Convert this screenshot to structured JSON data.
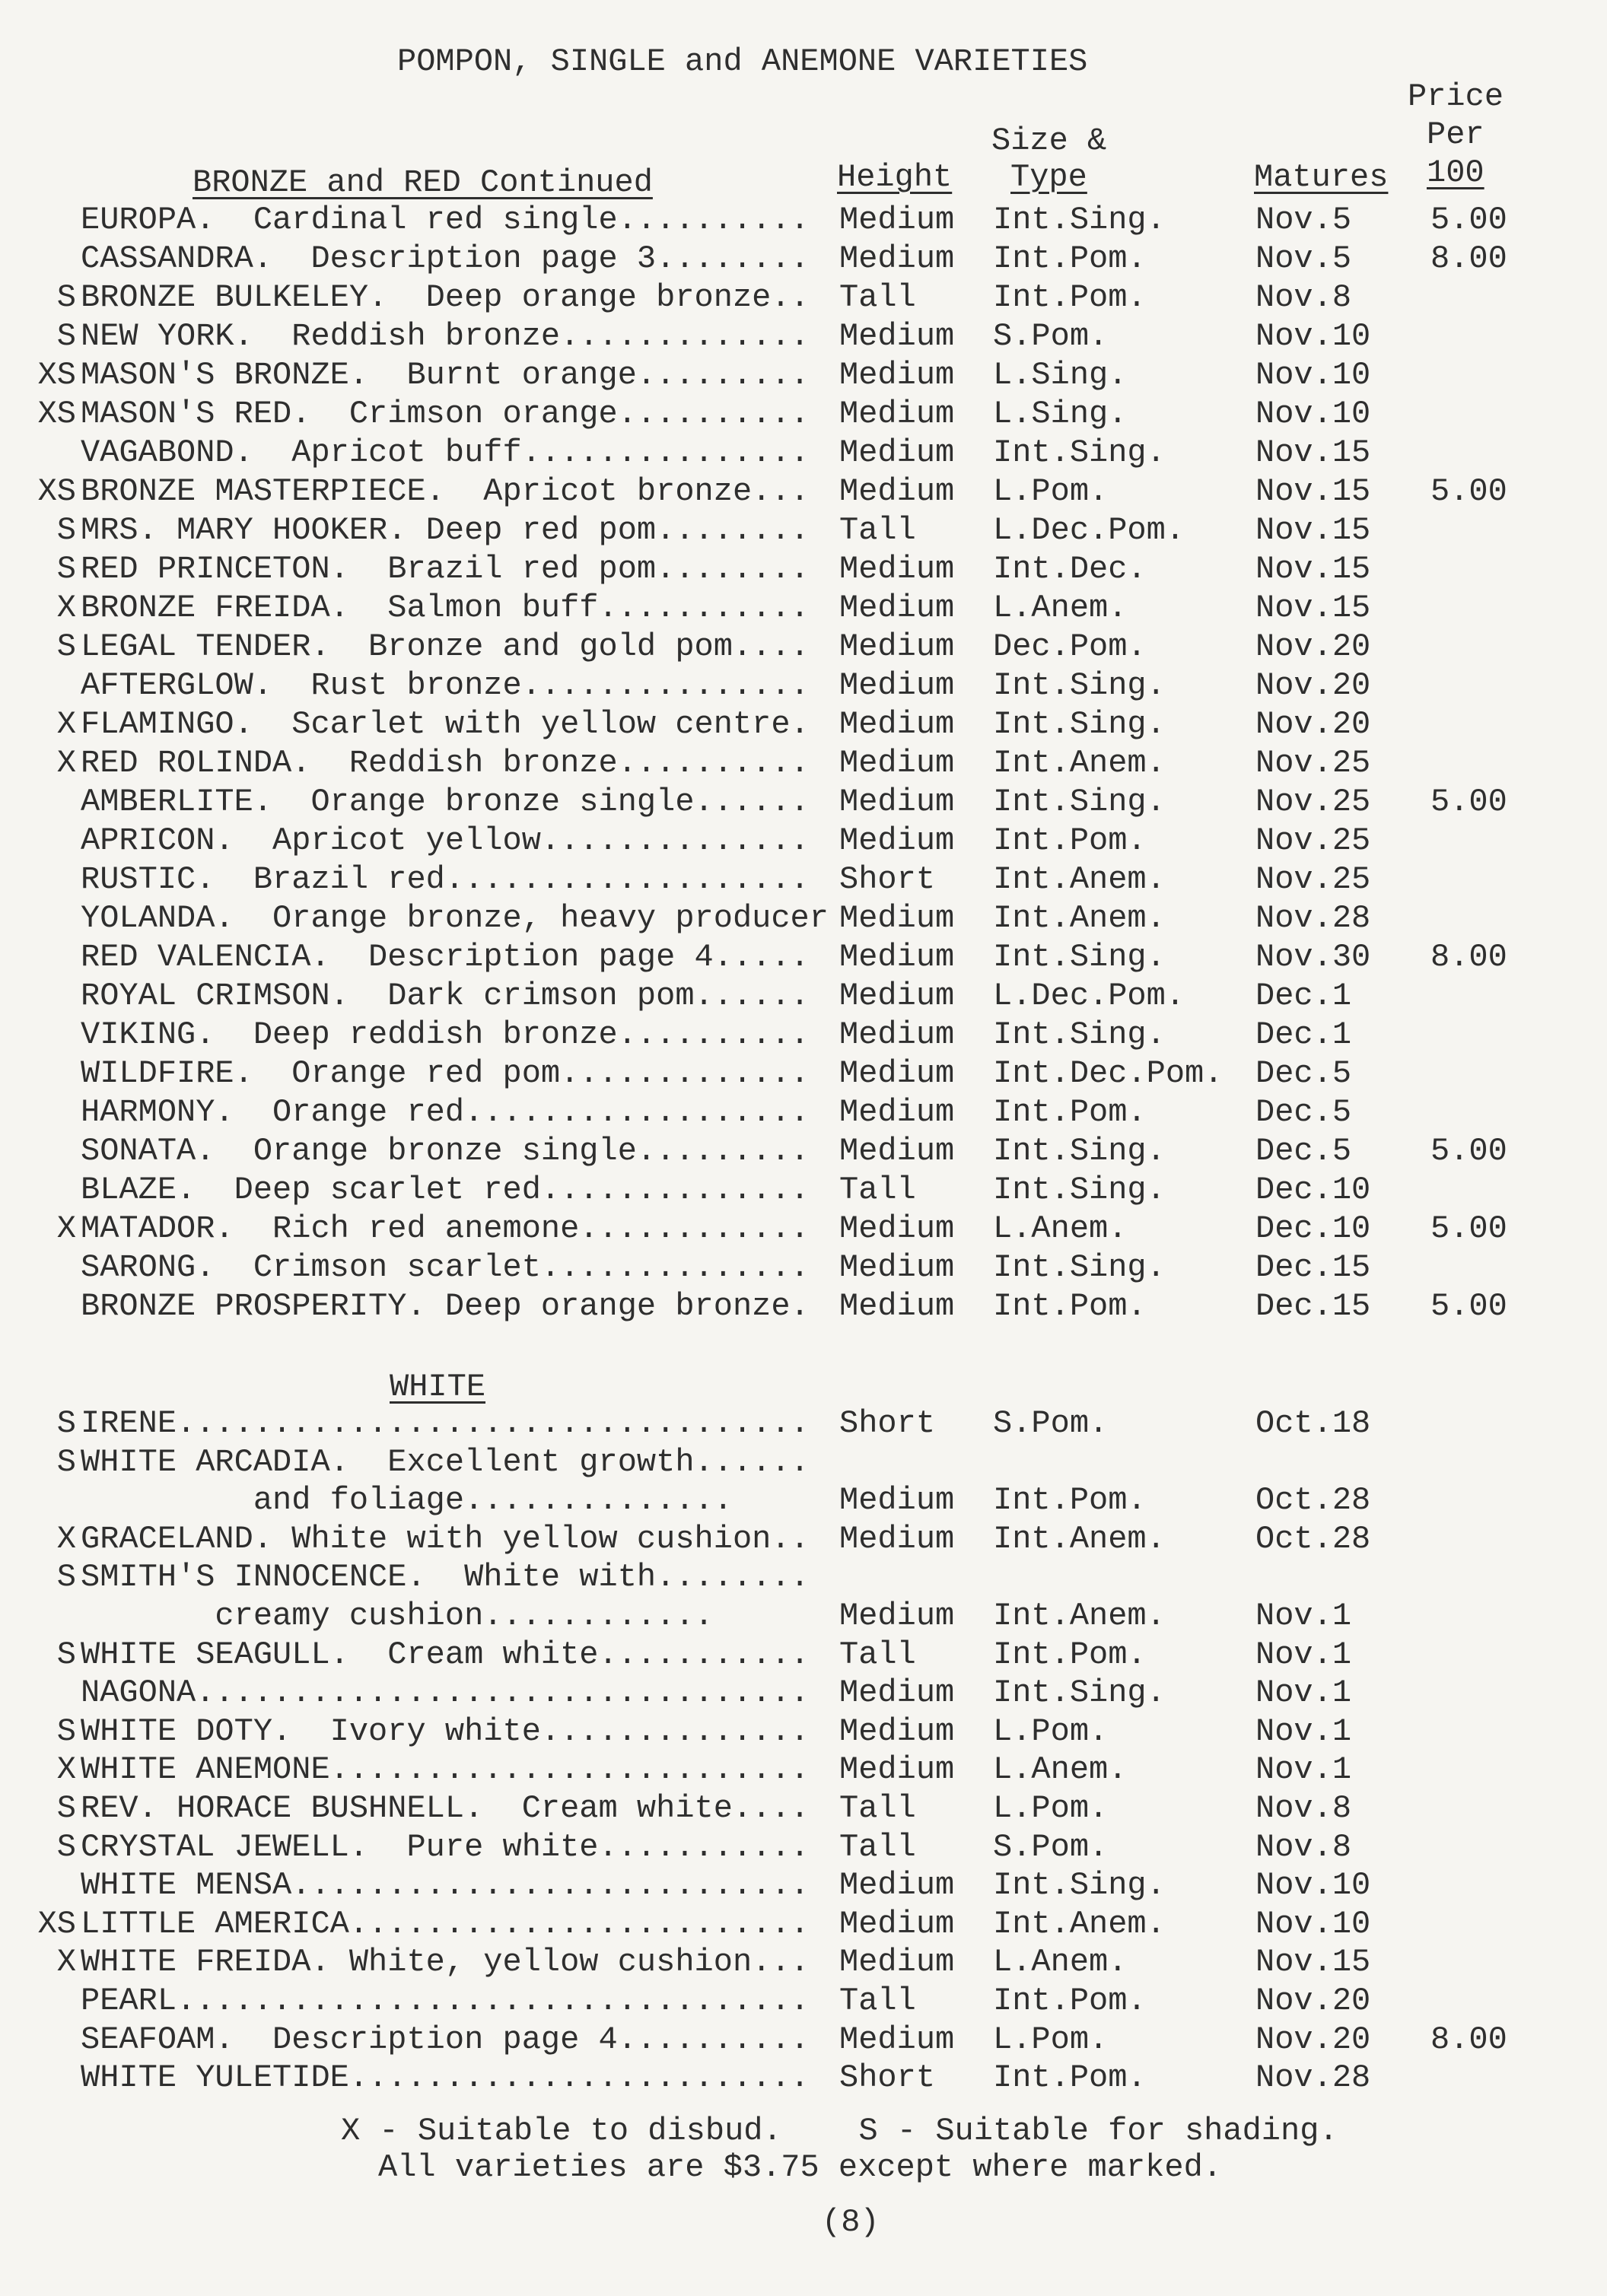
{
  "title": "POMPON, SINGLE and ANEMONE VARIETIES",
  "headers": {
    "price_line1": "Price",
    "price_line2": "Per",
    "price_line3": "100",
    "size_line1": "Size &",
    "size_line2": "Type",
    "height": "Height",
    "matures": "Matures"
  },
  "sections": [
    {
      "heading": "BRONZE and RED Continued",
      "rows": [
        {
          "flag": "",
          "name": "EUROPA.  Cardinal red single..........",
          "height": "Medium",
          "type": "Int.Sing.",
          "matures": "Nov.5",
          "price": "5.00"
        },
        {
          "flag": "",
          "name": "CASSANDRA.  Description page 3........",
          "height": "Medium",
          "type": "Int.Pom.",
          "matures": "Nov.5",
          "price": "8.00"
        },
        {
          "flag": "S",
          "name": "BRONZE BULKELEY.  Deep orange bronze..",
          "height": "Tall",
          "type": "Int.Pom.",
          "matures": "Nov.8",
          "price": ""
        },
        {
          "flag": "S",
          "name": "NEW YORK.  Reddish bronze.............",
          "height": "Medium",
          "type": "S.Pom.",
          "matures": "Nov.10",
          "price": ""
        },
        {
          "flag": "XS",
          "name": "MASON'S BRONZE.  Burnt orange.........",
          "height": "Medium",
          "type": "L.Sing.",
          "matures": "Nov.10",
          "price": ""
        },
        {
          "flag": "XS",
          "name": "MASON'S RED.  Crimson orange..........",
          "height": "Medium",
          "type": "L.Sing.",
          "matures": "Nov.10",
          "price": ""
        },
        {
          "flag": "",
          "name": "VAGABOND.  Apricot buff...............",
          "height": "Medium",
          "type": "Int.Sing.",
          "matures": "Nov.15",
          "price": ""
        },
        {
          "flag": "XS",
          "name": "BRONZE MASTERPIECE.  Apricot bronze...",
          "height": "Medium",
          "type": "L.Pom.",
          "matures": "Nov.15",
          "price": "5.00"
        },
        {
          "flag": "S",
          "name": "MRS. MARY HOOKER. Deep red pom........",
          "height": "Tall",
          "type": "L.Dec.Pom.",
          "matures": "Nov.15",
          "price": ""
        },
        {
          "flag": "S",
          "name": "RED PRINCETON.  Brazil red pom........",
          "height": "Medium",
          "type": "Int.Dec.",
          "matures": "Nov.15",
          "price": ""
        },
        {
          "flag": "X",
          "name": "BRONZE FREIDA.  Salmon buff...........",
          "height": "Medium",
          "type": "L.Anem.",
          "matures": "Nov.15",
          "price": ""
        },
        {
          "flag": "S",
          "name": "LEGAL TENDER.  Bronze and gold pom....",
          "height": "Medium",
          "type": "Dec.Pom.",
          "matures": "Nov.20",
          "price": ""
        },
        {
          "flag": "",
          "name": "AFTERGLOW.  Rust bronze...............",
          "height": "Medium",
          "type": "Int.Sing.",
          "matures": "Nov.20",
          "price": ""
        },
        {
          "flag": "X",
          "name": "FLAMINGO.  Scarlet with yellow centre.",
          "height": "Medium",
          "type": "Int.Sing.",
          "matures": "Nov.20",
          "price": ""
        },
        {
          "flag": "X",
          "name": "RED ROLINDA.  Reddish bronze..........",
          "height": "Medium",
          "type": "Int.Anem.",
          "matures": "Nov.25",
          "price": ""
        },
        {
          "flag": "",
          "name": "AMBERLITE.  Orange bronze single......",
          "height": "Medium",
          "type": "Int.Sing.",
          "matures": "Nov.25",
          "price": "5.00"
        },
        {
          "flag": "",
          "name": "APRICON.  Apricot yellow..............",
          "height": "Medium",
          "type": "Int.Pom.",
          "matures": "Nov.25",
          "price": ""
        },
        {
          "flag": "",
          "name": "RUSTIC.  Brazil red...................",
          "height": "Short",
          "type": "Int.Anem.",
          "matures": "Nov.25",
          "price": ""
        },
        {
          "flag": "",
          "name": "YOLANDA.  Orange bronze, heavy producer",
          "height": "Medium",
          "type": "Int.Anem.",
          "matures": "Nov.28",
          "price": ""
        },
        {
          "flag": "",
          "name": "RED VALENCIA.  Description page 4.....",
          "height": "Medium",
          "type": "Int.Sing.",
          "matures": "Nov.30",
          "price": "8.00"
        },
        {
          "flag": "",
          "name": "ROYAL CRIMSON.  Dark crimson pom......",
          "height": "Medium",
          "type": "L.Dec.Pom.",
          "matures": "Dec.1",
          "price": ""
        },
        {
          "flag": "",
          "name": "VIKING.  Deep reddish bronze..........",
          "height": "Medium",
          "type": "Int.Sing.",
          "matures": "Dec.1",
          "price": ""
        },
        {
          "flag": "",
          "name": "WILDFIRE.  Orange red pom.............",
          "height": "Medium",
          "type": "Int.Dec.Pom.",
          "matures": "Dec.5",
          "price": ""
        },
        {
          "flag": "",
          "name": "HARMONY.  Orange red..................",
          "height": "Medium",
          "type": "Int.Pom.",
          "matures": "Dec.5",
          "price": ""
        },
        {
          "flag": "",
          "name": "SONATA.  Orange bronze single.........",
          "height": "Medium",
          "type": "Int.Sing.",
          "matures": "Dec.5",
          "price": "5.00"
        },
        {
          "flag": "",
          "name": "BLAZE.  Deep scarlet red..............",
          "height": "Tall",
          "type": "Int.Sing.",
          "matures": "Dec.10",
          "price": ""
        },
        {
          "flag": "X",
          "name": "MATADOR.  Rich red anemone............",
          "height": "Medium",
          "type": "L.Anem.",
          "matures": "Dec.10",
          "price": "5.00"
        },
        {
          "flag": "",
          "name": "SARONG.  Crimson scarlet..............",
          "height": "Medium",
          "type": "Int.Sing.",
          "matures": "Dec.15",
          "price": ""
        },
        {
          "flag": "",
          "name": "BRONZE PROSPERITY. Deep orange bronze.",
          "height": "Medium",
          "type": "Int.Pom.",
          "matures": "Dec.15",
          "price": "5.00"
        }
      ]
    },
    {
      "heading": "WHITE",
      "rows": [
        {
          "flag": "S",
          "name": "IRENE.................................",
          "height": "Short",
          "type": "S.Pom.",
          "matures": "Oct.18",
          "price": ""
        },
        {
          "flag": "S",
          "name": "WHITE ARCADIA.  Excellent growth......",
          "name2": "         and foliage..............",
          "height": "Medium",
          "type": "Int.Pom.",
          "matures": "Oct.28",
          "price": ""
        },
        {
          "flag": "X",
          "name": "GRACELAND. White with yellow cushion..",
          "height": "Medium",
          "type": "Int.Anem.",
          "matures": "Oct.28",
          "price": ""
        },
        {
          "flag": "S",
          "name": "SMITH'S INNOCENCE.  White with........",
          "name2": "       creamy cushion............",
          "height": "Medium",
          "type": "Int.Anem.",
          "matures": "Nov.1",
          "price": ""
        },
        {
          "flag": "S",
          "name": "WHITE SEAGULL.  Cream white...........",
          "height": "Tall",
          "type": "Int.Pom.",
          "matures": "Nov.1",
          "price": ""
        },
        {
          "flag": "",
          "name": "NAGONA................................",
          "height": "Medium",
          "type": "Int.Sing.",
          "matures": "Nov.1",
          "price": ""
        },
        {
          "flag": "S",
          "name": "WHITE DOTY.  Ivory white..............",
          "height": "Medium",
          "type": "L.Pom.",
          "matures": "Nov.1",
          "price": ""
        },
        {
          "flag": "X",
          "name": "WHITE ANEMONE.........................",
          "height": "Medium",
          "type": "L.Anem.",
          "matures": "Nov.1",
          "price": ""
        },
        {
          "flag": "S",
          "name": "REV. HORACE BUSHNELL.  Cream white....",
          "height": "Tall",
          "type": "L.Pom.",
          "matures": "Nov.8",
          "price": ""
        },
        {
          "flag": "S",
          "name": "CRYSTAL JEWELL.  Pure white...........",
          "height": "Tall",
          "type": "S.Pom.",
          "matures": "Nov.8",
          "price": ""
        },
        {
          "flag": "",
          "name": "WHITE MENSA...........................",
          "height": "Medium",
          "type": "Int.Sing.",
          "matures": "Nov.10",
          "price": ""
        },
        {
          "flag": "XS",
          "name": "LITTLE AMERICA........................",
          "height": "Medium",
          "type": "Int.Anem.",
          "matures": "Nov.10",
          "price": ""
        },
        {
          "flag": "X",
          "name": "WHITE FREIDA. White, yellow cushion...",
          "height": "Medium",
          "type": "L.Anem.",
          "matures": "Nov.15",
          "price": ""
        },
        {
          "flag": "",
          "name": "PEARL.................................",
          "height": "Tall",
          "type": "Int.Pom.",
          "matures": "Nov.20",
          "price": ""
        },
        {
          "flag": "",
          "name": "SEAFOAM.  Description page 4..........",
          "height": "Medium",
          "type": "L.Pom.",
          "matures": "Nov.20",
          "price": "8.00"
        },
        {
          "flag": "",
          "name": "WHITE YULETIDE........................",
          "height": "Short",
          "type": "Int.Pom.",
          "matures": "Nov.28",
          "price": ""
        }
      ]
    }
  ],
  "footer": {
    "legend": "X - Suitable to disbud.    S - Suitable for shading.",
    "note": "All varieties are $3.75 except where marked.",
    "page_number": "(8)"
  }
}
